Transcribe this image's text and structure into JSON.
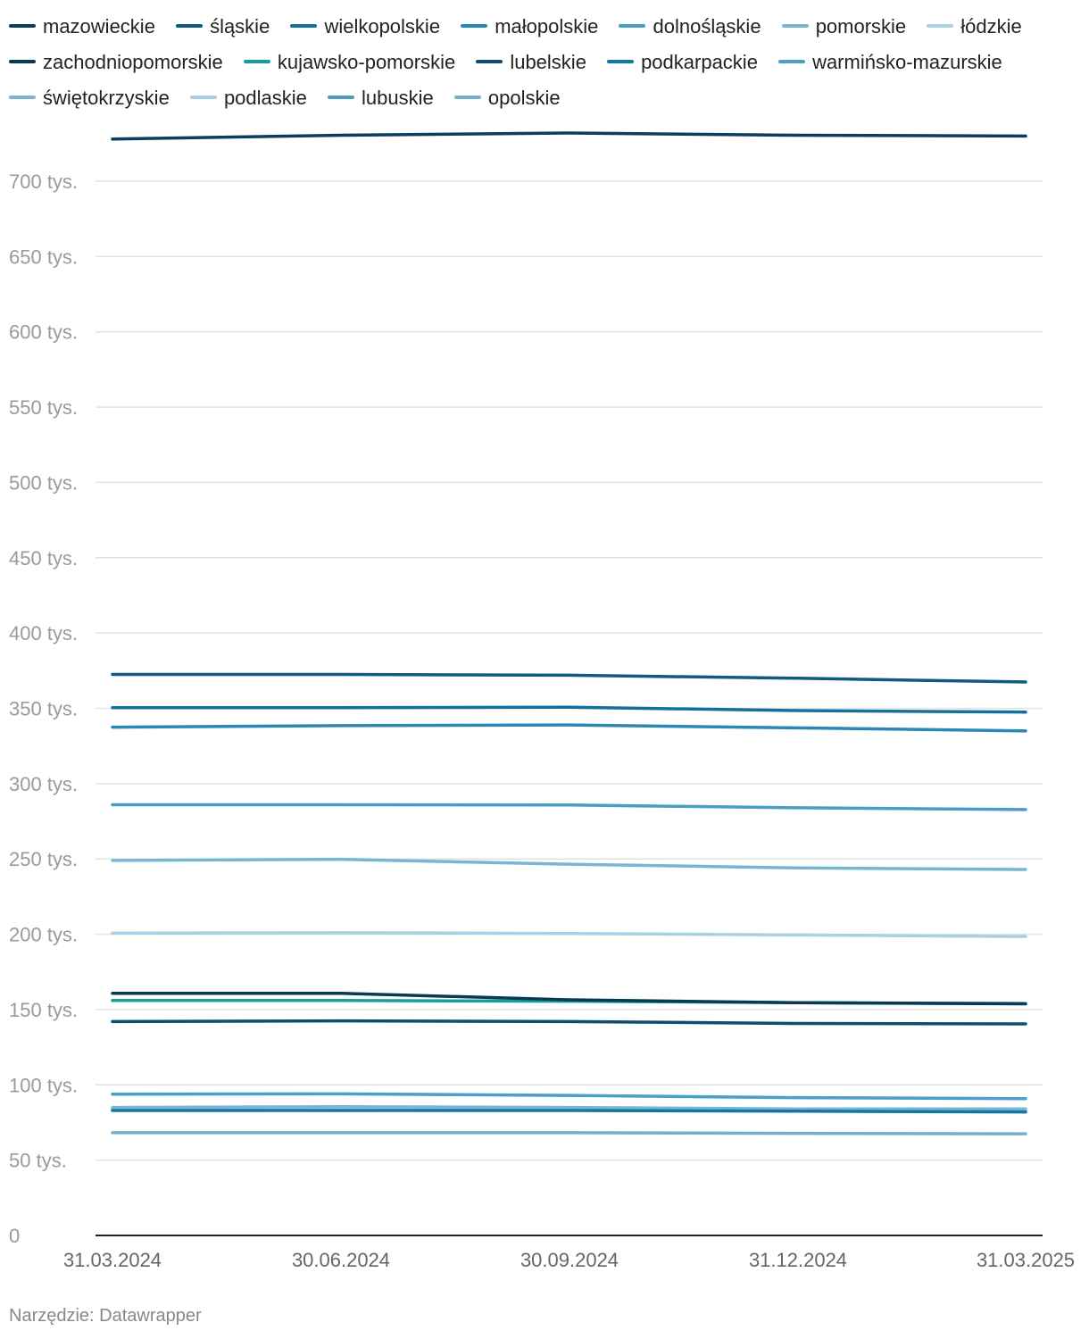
{
  "chart_data": {
    "type": "line",
    "x": [
      "31.03.2024",
      "30.06.2024",
      "30.09.2024",
      "31.12.2024",
      "31.03.2025"
    ],
    "ylim": [
      0,
      735000
    ],
    "yticks": [
      0,
      50000,
      100000,
      150000,
      200000,
      250000,
      300000,
      350000,
      400000,
      450000,
      500000,
      550000,
      600000,
      650000,
      700000
    ],
    "ytick_labels": [
      "0",
      "50 tys.",
      "100 tys.",
      "150 tys.",
      "200 tys.",
      "250 tys.",
      "300 tys.",
      "350 tys.",
      "400 tys.",
      "450 tys.",
      "500 tys.",
      "550 tys.",
      "600 tys.",
      "650 tys.",
      "700 tys."
    ],
    "grid": true,
    "legend_position": "top",
    "series": [
      {
        "name": "mazowieckie",
        "color": "#0b3e5c",
        "values": [
          728000,
          730500,
          732000,
          730500,
          730000
        ]
      },
      {
        "name": "śląskie",
        "color": "#0e5a80",
        "values": [
          372500,
          372500,
          372000,
          370000,
          367500
        ]
      },
      {
        "name": "wielkopolskie",
        "color": "#12709e",
        "values": [
          350500,
          350500,
          350800,
          348500,
          347500
        ]
      },
      {
        "name": "małopolskie",
        "color": "#2a88b5",
        "values": [
          337500,
          338500,
          339000,
          337000,
          335000
        ]
      },
      {
        "name": "dolnośląskie",
        "color": "#4a9ec5",
        "values": [
          286000,
          286000,
          285800,
          284000,
          282800
        ]
      },
      {
        "name": "pomorskie",
        "color": "#7ab6d3",
        "values": [
          249000,
          249800,
          246500,
          244000,
          243000
        ]
      },
      {
        "name": "łódzkie",
        "color": "#a9d0e3",
        "values": [
          200700,
          201000,
          200500,
          199500,
          198500
        ]
      },
      {
        "name": "zachodniopomorskie",
        "color": "#083a52",
        "values": [
          160800,
          160800,
          156500,
          154500,
          153800
        ]
      },
      {
        "name": "kujawsko-pomorskie",
        "color": "#15a09a",
        "values": [
          156000,
          156000,
          155500,
          154500,
          154000
        ]
      },
      {
        "name": "lubelskie",
        "color": "#0c4d70",
        "values": [
          142000,
          142500,
          142000,
          140800,
          140500
        ]
      },
      {
        "name": "podkarpackie",
        "color": "#1377a6",
        "values": [
          83000,
          83000,
          83000,
          82500,
          82000
        ]
      },
      {
        "name": "warmińsko-mazurskie",
        "color": "#4c9fc6",
        "values": [
          93800,
          94000,
          93000,
          91500,
          90800
        ]
      },
      {
        "name": "świętokrzyskie",
        "color": "#7bb5d2",
        "values": [
          85000,
          85500,
          85000,
          84000,
          84000
        ]
      },
      {
        "name": "podlaskie",
        "color": "#a6cfe2",
        "values": [
          84200,
          84200,
          84000,
          83500,
          83000
        ]
      },
      {
        "name": "lubuskie",
        "color": "#4f9bbf",
        "values": [
          83500,
          83500,
          83200,
          82800,
          82500
        ]
      },
      {
        "name": "opolskie",
        "color": "#76afcc",
        "values": [
          68200,
          68200,
          68200,
          67800,
          67500
        ]
      }
    ]
  },
  "footer": {
    "source": "Narzędzie: Datawrapper"
  }
}
